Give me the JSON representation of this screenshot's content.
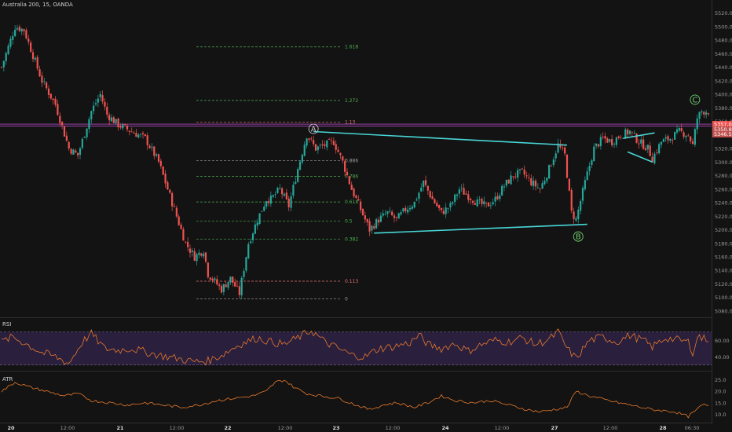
{
  "symbol_title": "Australia 200, 15, OANDA",
  "colors": {
    "background": "#131313",
    "bull": "#26a69a",
    "bear": "#ef5350",
    "trendline": "#49d6d6",
    "rsi": "#e8792b",
    "atr": "#e8792b",
    "rsi_band": "#2a1f3d",
    "wave_label": "#6fcf6f",
    "wave_label_a": "#c0c0c0",
    "fib_green": "#4caf50",
    "fib_red": "#e57373",
    "fib_gray": "#9e9e9e",
    "level_line": "#ab47bc",
    "price_tag_bg": "#ef5350",
    "price_tag_bg2": "#c0504d"
  },
  "chart_data": {
    "type": "candlestick",
    "instrument": "Australia 200",
    "timeframe": "15",
    "source": "OANDA",
    "time_ticks": [
      "20",
      "12:00",
      "21",
      "12:00",
      "22",
      "12:00",
      "23",
      "12:00",
      "24",
      "12:00",
      "27",
      "12:00",
      "28",
      "06:30"
    ],
    "price_ticks": [
      5520.0,
      5500.0,
      5480.0,
      5460.0,
      5440.0,
      5420.0,
      5400.0,
      5380.0,
      5360.0,
      5340.0,
      5320.0,
      5300.0,
      5280.0,
      5260.0,
      5240.0,
      5220.0,
      5200.0,
      5180.0,
      5160.0,
      5140.0,
      5120.0,
      5100.0,
      5080.0
    ],
    "price_range": [
      5073,
      5530
    ],
    "price_path": [
      [
        0,
        5440
      ],
      [
        6,
        5500
      ],
      [
        10,
        5495
      ],
      [
        18,
        5420
      ],
      [
        24,
        5385
      ],
      [
        30,
        5320
      ],
      [
        34,
        5310
      ],
      [
        40,
        5375
      ],
      [
        44,
        5400
      ],
      [
        47,
        5370
      ],
      [
        52,
        5355
      ],
      [
        58,
        5345
      ],
      [
        64,
        5335
      ],
      [
        70,
        5300
      ],
      [
        76,
        5240
      ],
      [
        82,
        5180
      ],
      [
        86,
        5160
      ],
      [
        90,
        5170
      ],
      [
        92,
        5135
      ],
      [
        98,
        5112
      ],
      [
        102,
        5128
      ],
      [
        106,
        5106
      ],
      [
        110,
        5180
      ],
      [
        114,
        5215
      ],
      [
        118,
        5245
      ],
      [
        120,
        5245
      ],
      [
        124,
        5260
      ],
      [
        128,
        5235
      ],
      [
        132,
        5290
      ],
      [
        136,
        5340
      ],
      [
        140,
        5320
      ],
      [
        144,
        5325
      ],
      [
        148,
        5330
      ],
      [
        152,
        5300
      ],
      [
        156,
        5260
      ],
      [
        160,
        5230
      ],
      [
        164,
        5200
      ],
      [
        168,
        5215
      ],
      [
        172,
        5225
      ],
      [
        176,
        5215
      ],
      [
        180,
        5230
      ],
      [
        184,
        5240
      ],
      [
        188,
        5270
      ],
      [
        192,
        5245
      ],
      [
        196,
        5225
      ],
      [
        200,
        5235
      ],
      [
        204,
        5260
      ],
      [
        208,
        5250
      ],
      [
        212,
        5240
      ],
      [
        216,
        5235
      ],
      [
        220,
        5245
      ],
      [
        224,
        5265
      ],
      [
        228,
        5280
      ],
      [
        232,
        5285
      ],
      [
        236,
        5270
      ],
      [
        240,
        5260
      ],
      [
        244,
        5290
      ],
      [
        248,
        5325
      ],
      [
        251,
        5310
      ],
      [
        254,
        5225
      ],
      [
        256,
        5215
      ],
      [
        260,
        5270
      ],
      [
        264,
        5320
      ],
      [
        268,
        5335
      ],
      [
        272,
        5330
      ],
      [
        276,
        5340
      ],
      [
        280,
        5345
      ],
      [
        284,
        5330
      ],
      [
        288,
        5320
      ],
      [
        290,
        5305
      ],
      [
        294,
        5330
      ],
      [
        298,
        5335
      ],
      [
        302,
        5345
      ],
      [
        306,
        5340
      ],
      [
        308,
        5325
      ],
      [
        310,
        5365
      ],
      [
        312,
        5375
      ]
    ],
    "trendlines": [
      {
        "from": [
          139,
          5345
        ],
        "to": [
          252,
          5325
        ]
      },
      {
        "from": [
          166,
          5195
        ],
        "to": [
          261,
          5208
        ]
      },
      {
        "from": [
          277,
          5335
        ],
        "to": [
          291,
          5343
        ]
      },
      {
        "from": [
          279,
          5315
        ],
        "to": [
          290,
          5300
        ]
      }
    ],
    "wave_labels": [
      {
        "label": "A",
        "x": 139,
        "price": 5349
      },
      {
        "label": "B",
        "x": 257,
        "price": 5190
      },
      {
        "label": "C",
        "x": 309,
        "price": 5392
      }
    ],
    "fib_levels": [
      {
        "label": "1.618",
        "price": 5470,
        "color": "green"
      },
      {
        "label": "1.272",
        "price": 5391,
        "color": "green"
      },
      {
        "label": "1.13",
        "price": 5359,
        "color": "red"
      },
      {
        "label": "0.886",
        "price": 5302,
        "color": "gray"
      },
      {
        "label": "0.786",
        "price": 5279,
        "color": "green"
      },
      {
        "label": "0.618",
        "price": 5241,
        "color": "green"
      },
      {
        "label": "0.5",
        "price": 5213,
        "color": "green"
      },
      {
        "label": "0.382",
        "price": 5186,
        "color": "green"
      },
      {
        "label": "0.113",
        "price": 5124,
        "color": "red"
      },
      {
        "label": "0",
        "price": 5098,
        "color": "gray"
      }
    ],
    "horizontal_levels": [
      5356,
      5353
    ],
    "price_tags": [
      {
        "text": "5357.0",
        "price": 5356
      },
      {
        "text": "5350.8",
        "price": 5348
      },
      {
        "text": "5346.5",
        "price": 5341
      }
    ],
    "rsi": {
      "label": "RSI",
      "ticks": [
        60.0,
        40.0
      ],
      "range": [
        25,
        85
      ],
      "band": [
        30,
        70
      ],
      "path": [
        [
          0,
          58
        ],
        [
          5,
          64
        ],
        [
          10,
          57
        ],
        [
          18,
          45
        ],
        [
          24,
          40
        ],
        [
          30,
          32
        ],
        [
          36,
          58
        ],
        [
          40,
          68
        ],
        [
          46,
          50
        ],
        [
          52,
          48
        ],
        [
          58,
          50
        ],
        [
          64,
          46
        ],
        [
          70,
          42
        ],
        [
          78,
          38
        ],
        [
          86,
          34
        ],
        [
          92,
          35
        ],
        [
          98,
          42
        ],
        [
          106,
          55
        ],
        [
          114,
          63
        ],
        [
          120,
          58
        ],
        [
          126,
          55
        ],
        [
          132,
          63
        ],
        [
          138,
          72
        ],
        [
          144,
          58
        ],
        [
          150,
          50
        ],
        [
          156,
          42
        ],
        [
          162,
          40
        ],
        [
          168,
          50
        ],
        [
          174,
          52
        ],
        [
          182,
          57
        ],
        [
          186,
          66
        ],
        [
          190,
          55
        ],
        [
          196,
          50
        ],
        [
          202,
          56
        ],
        [
          208,
          47
        ],
        [
          214,
          55
        ],
        [
          220,
          60
        ],
        [
          226,
          58
        ],
        [
          232,
          63
        ],
        [
          238,
          55
        ],
        [
          244,
          61
        ],
        [
          248,
          70
        ],
        [
          252,
          50
        ],
        [
          256,
          38
        ],
        [
          262,
          60
        ],
        [
          268,
          64
        ],
        [
          274,
          58
        ],
        [
          280,
          66
        ],
        [
          286,
          60
        ],
        [
          290,
          52
        ],
        [
          296,
          63
        ],
        [
          302,
          60
        ],
        [
          306,
          58
        ],
        [
          308,
          46
        ],
        [
          311,
          68
        ],
        [
          312,
          62
        ]
      ]
    },
    "atr": {
      "label": "ATR",
      "ticks": [
        25.0,
        20.0,
        15.0,
        10.0
      ],
      "range": [
        7,
        28
      ],
      "path": [
        [
          0,
          20
        ],
        [
          6,
          24
        ],
        [
          12,
          22
        ],
        [
          20,
          20
        ],
        [
          28,
          18
        ],
        [
          34,
          19
        ],
        [
          40,
          16
        ],
        [
          48,
          15
        ],
        [
          56,
          14
        ],
        [
          64,
          15
        ],
        [
          72,
          14
        ],
        [
          80,
          13
        ],
        [
          88,
          14
        ],
        [
          96,
          16
        ],
        [
          104,
          17
        ],
        [
          112,
          18
        ],
        [
          118,
          20
        ],
        [
          122,
          24
        ],
        [
          126,
          25
        ],
        [
          130,
          22
        ],
        [
          136,
          19
        ],
        [
          142,
          18
        ],
        [
          150,
          17
        ],
        [
          158,
          14
        ],
        [
          164,
          12
        ],
        [
          170,
          14
        ],
        [
          176,
          15
        ],
        [
          184,
          13
        ],
        [
          190,
          15
        ],
        [
          196,
          18
        ],
        [
          202,
          16
        ],
        [
          210,
          15
        ],
        [
          218,
          16
        ],
        [
          226,
          14
        ],
        [
          234,
          12
        ],
        [
          240,
          11
        ],
        [
          246,
          12
        ],
        [
          252,
          13
        ],
        [
          256,
          20
        ],
        [
          262,
          18
        ],
        [
          270,
          16
        ],
        [
          280,
          14
        ],
        [
          290,
          12
        ],
        [
          300,
          11
        ],
        [
          306,
          9
        ],
        [
          310,
          12
        ],
        [
          312,
          14
        ]
      ]
    }
  }
}
